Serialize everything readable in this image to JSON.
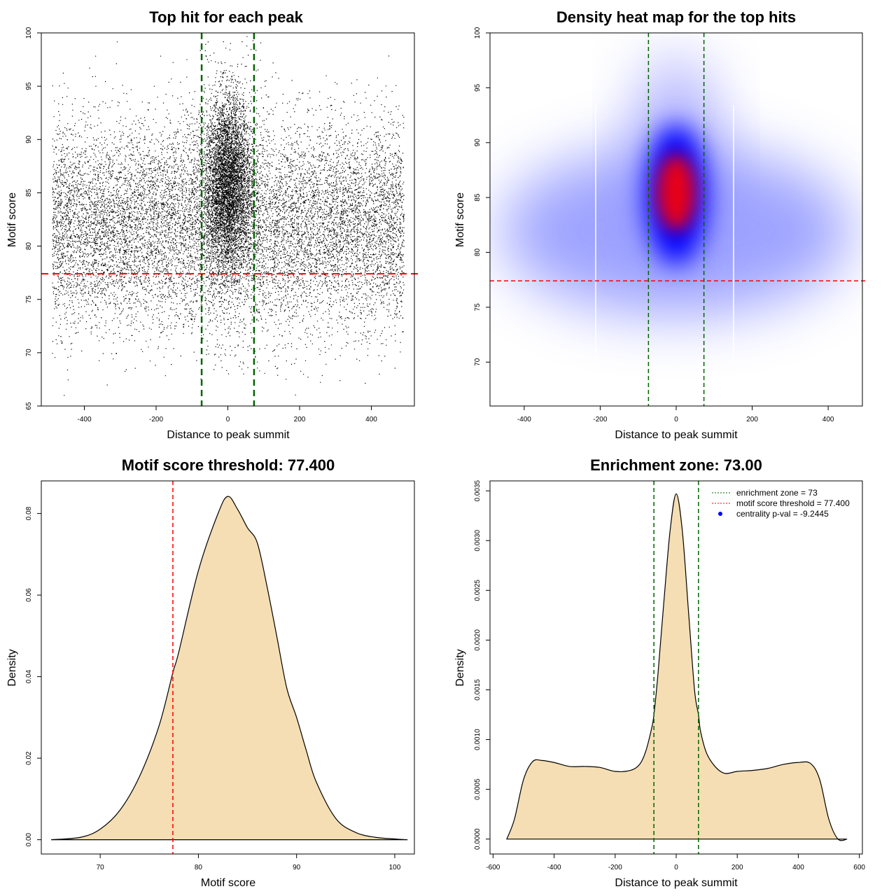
{
  "chart_data": [
    {
      "type": "scatter",
      "title": "Top hit for each peak",
      "xlabel": "Distance to peak summit",
      "ylabel": "Motif score",
      "xlim": [
        -520,
        520
      ],
      "ylim": [
        65,
        100
      ],
      "xticks": [
        -400,
        -200,
        0,
        200,
        400
      ],
      "yticks": [
        65,
        70,
        75,
        80,
        85,
        90,
        95,
        100
      ],
      "vlines": [
        -73,
        73
      ],
      "hline": 77.4,
      "colors": {
        "points": "#000000",
        "vline": "#006400",
        "hline": "#ff0000"
      }
    },
    {
      "type": "heatmap",
      "title": "Density heat map for the top hits",
      "xlabel": "Distance to peak summit",
      "ylabel": "Motif score",
      "xlim": [
        -490,
        490
      ],
      "ylim": [
        66,
        100
      ],
      "xticks": [
        -400,
        -200,
        0,
        200,
        400
      ],
      "yticks": [
        70,
        75,
        80,
        85,
        90,
        95,
        100
      ],
      "vlines": [
        -73,
        73
      ],
      "hline": 77.4,
      "colors": {
        "low": "#ffffff",
        "mid": "#0000ff",
        "high": "#ff0000",
        "vline": "#006400",
        "hline": "#ff0000"
      }
    },
    {
      "type": "area",
      "title": "Motif score threshold: 77.400",
      "xlabel": "Motif score",
      "ylabel": "Density",
      "xlim": [
        64,
        102
      ],
      "ylim": [
        -0.0035,
        0.088
      ],
      "xticks": [
        70,
        80,
        90,
        100
      ],
      "yticks": [
        0.0,
        0.02,
        0.04,
        0.06,
        0.08
      ],
      "ytick_labels": [
        "0.00",
        "0.02",
        "0.04",
        "0.06",
        "0.08"
      ],
      "vline": 77.4,
      "x": [
        65,
        68,
        70,
        72,
        74,
        76,
        77.4,
        78,
        80,
        82,
        83,
        84,
        85,
        86,
        87,
        88,
        89,
        90,
        91,
        92,
        94,
        96,
        98,
        100,
        101.3
      ],
      "y": [
        0.0,
        0.0006,
        0.0026,
        0.0072,
        0.0155,
        0.028,
        0.041,
        0.046,
        0.066,
        0.08,
        0.0842,
        0.081,
        0.0765,
        0.0728,
        0.062,
        0.0497,
        0.0372,
        0.03,
        0.0218,
        0.0142,
        0.0052,
        0.0018,
        0.0006,
        0.0002,
        0.0
      ],
      "colors": {
        "fill": "#f5deb3",
        "line": "#000000",
        "vline": "#ff0000"
      }
    },
    {
      "type": "area",
      "title": "Enrichment zone: 73.00",
      "xlabel": "Distance to peak summit",
      "ylabel": "Density",
      "xlim": [
        -610,
        610
      ],
      "ylim": [
        -0.00015,
        0.0036
      ],
      "xticks": [
        -600,
        -400,
        -200,
        0,
        200,
        400,
        600
      ],
      "yticks": [
        0.0,
        0.0005,
        0.001,
        0.0015,
        0.002,
        0.0025,
        0.003,
        0.0035
      ],
      "ytick_labels": [
        "0.0000",
        "0.0005",
        "0.0010",
        "0.0015",
        "0.0020",
        "0.0025",
        "0.0030",
        "0.0035"
      ],
      "vlines": [
        -73,
        73
      ],
      "x": [
        -555,
        -530,
        -500,
        -470,
        -440,
        -400,
        -350,
        -300,
        -250,
        -200,
        -150,
        -120,
        -100,
        -80,
        -73,
        -60,
        -40,
        -20,
        0,
        20,
        40,
        60,
        73,
        80,
        100,
        130,
        160,
        200,
        250,
        300,
        350,
        400,
        440,
        470,
        500,
        530,
        560
      ],
      "y": [
        0.0,
        0.0002,
        0.0006,
        0.00078,
        0.00079,
        0.00077,
        0.00073,
        0.00073,
        0.00072,
        0.00068,
        0.00069,
        0.00075,
        0.00088,
        0.00112,
        0.00125,
        0.00165,
        0.0024,
        0.0031,
        0.00347,
        0.0031,
        0.0023,
        0.0015,
        0.00125,
        0.00108,
        0.00086,
        0.00072,
        0.00066,
        0.00068,
        0.00069,
        0.00071,
        0.00075,
        0.00077,
        0.00076,
        0.0006,
        0.0002,
        0.0,
        0.0
      ],
      "colors": {
        "fill": "#f5deb3",
        "line": "#000000",
        "vline": "#006400"
      },
      "legend": [
        {
          "label": "enrichment zone = 73",
          "style": "dotted-line",
          "color": "#006400"
        },
        {
          "label": "motif score threshold = 77.400",
          "style": "dotted-line",
          "color": "#ff0000"
        },
        {
          "label": "centrality p-val = -9.2445",
          "style": "dot",
          "color": "#0000ff"
        }
      ],
      "legend_position": "top-right"
    }
  ]
}
